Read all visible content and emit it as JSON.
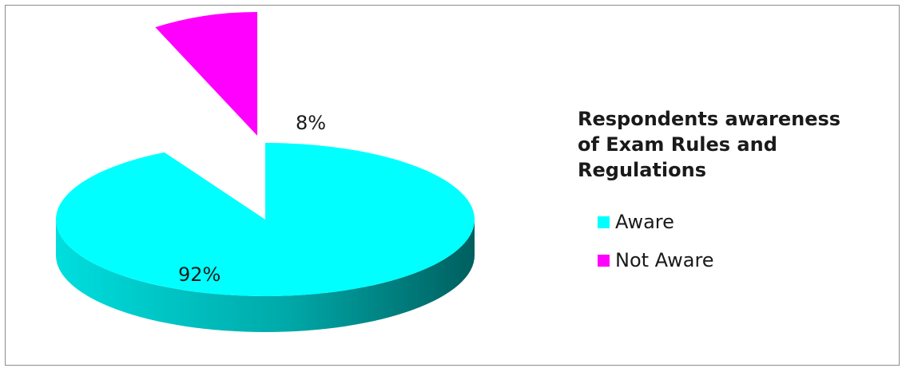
{
  "chart_data": {
    "type": "pie",
    "title": "Respondents awareness of Exam Rules and Regulations",
    "slices": [
      {
        "name": "Aware",
        "value": 92,
        "label": "92%",
        "color": "#00ffff",
        "side_color": "#007f7f"
      },
      {
        "name": "Not Aware",
        "value": 8,
        "label": "8%",
        "color": "#ff00ff",
        "side_color": "#a000a0"
      }
    ],
    "exploded": [
      "Not Aware"
    ],
    "three_d": true,
    "legend_position": "right"
  }
}
